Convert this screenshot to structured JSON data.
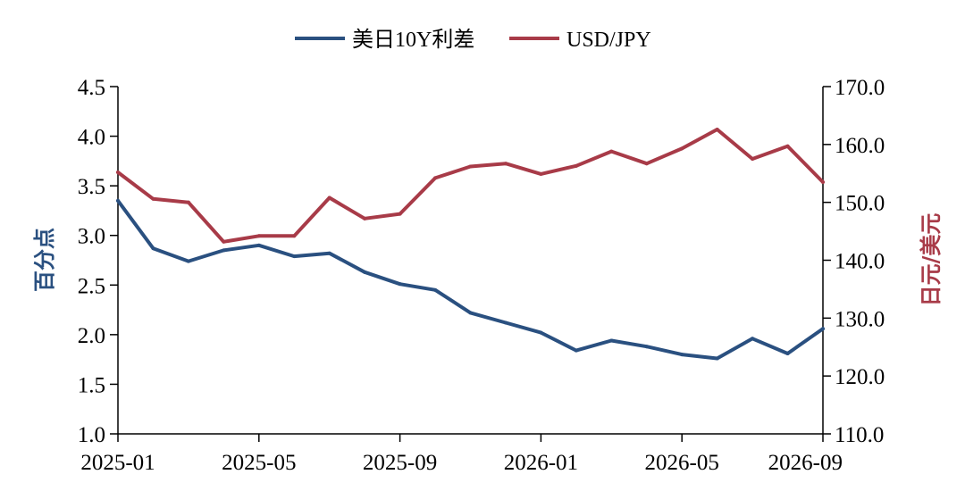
{
  "chart_data": {
    "type": "line",
    "x": [
      "2025-01",
      "2025-02",
      "2025-03",
      "2025-04",
      "2025-05",
      "2025-06",
      "2025-07",
      "2025-08",
      "2025-09",
      "2025-10",
      "2025-11",
      "2025-12",
      "2026-01",
      "2026-02",
      "2026-03",
      "2026-04",
      "2026-05",
      "2026-06",
      "2026-07",
      "2026-08",
      "2026-09"
    ],
    "x_tick_labels": [
      "2025-01",
      "2025-05",
      "2025-09",
      "2026-01",
      "2026-05",
      "2026-09"
    ],
    "y_left_label": "百分点",
    "y_right_label": "日元/美元",
    "y_left_lim": [
      1.0,
      4.5
    ],
    "y_right_lim": [
      110.0,
      170.0
    ],
    "y_left_ticks": [
      "1.0",
      "1.5",
      "2.0",
      "2.5",
      "3.0",
      "3.5",
      "4.0",
      "4.5"
    ],
    "y_right_ticks": [
      "110.0",
      "120.0",
      "130.0",
      "140.0",
      "150.0",
      "160.0",
      "170.0"
    ],
    "legend_position": "top-center",
    "grid": false,
    "series": [
      {
        "name": "美日10Y利差",
        "axis": "left",
        "color": "#2a5080",
        "values": [
          3.35,
          2.87,
          2.74,
          2.85,
          2.9,
          2.79,
          2.82,
          2.63,
          2.51,
          2.45,
          2.22,
          2.12,
          2.02,
          1.84,
          1.94,
          1.88,
          1.8,
          1.76,
          1.96,
          1.81,
          2.06
        ]
      },
      {
        "name": "USD/JPY",
        "axis": "right",
        "color": "#a83b48",
        "values": [
          155.2,
          150.6,
          150.0,
          143.2,
          144.2,
          144.2,
          150.8,
          147.2,
          148.0,
          154.2,
          156.2,
          156.7,
          154.9,
          156.3,
          158.8,
          156.7,
          159.3,
          162.6,
          157.5,
          159.7,
          153.5
        ]
      }
    ]
  }
}
